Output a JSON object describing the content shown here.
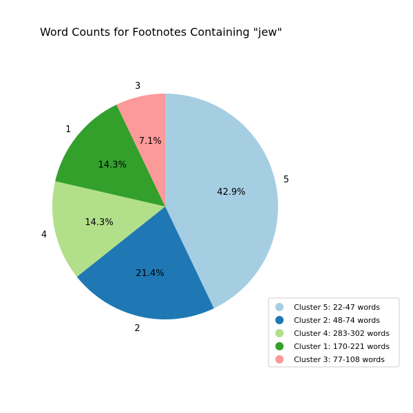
{
  "chart_data": {
    "type": "pie",
    "title": "Word Counts for Footnotes Containing \"jew\"",
    "start_angle_deg": 90,
    "direction": "clockwise",
    "slices": [
      {
        "label": "5",
        "percent": 42.9,
        "percent_label": "42.9%",
        "color": "#a6cee3",
        "legend": "Cluster 5: 22-47 words"
      },
      {
        "label": "2",
        "percent": 21.4,
        "percent_label": "21.4%",
        "color": "#1f78b4",
        "legend": "Cluster 2: 48-74 words"
      },
      {
        "label": "4",
        "percent": 14.3,
        "percent_label": "14.3%",
        "color": "#b2df8a",
        "legend": "Cluster 4: 283-302 words"
      },
      {
        "label": "1",
        "percent": 14.3,
        "percent_label": "14.3%",
        "color": "#33a02c",
        "legend": "Cluster 1: 170-221 words"
      },
      {
        "label": "3",
        "percent": 7.1,
        "percent_label": "7.1%",
        "color": "#fb9a99",
        "legend": "Cluster 3: 77-108 words"
      }
    ],
    "legend_position": "lower-right"
  }
}
